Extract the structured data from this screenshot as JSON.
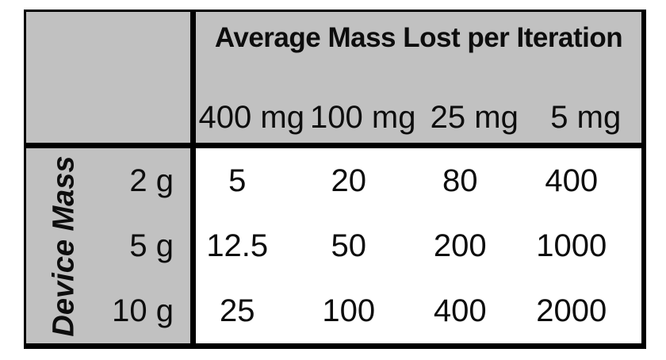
{
  "ui": {
    "title": "Average Mass Lost per Iteration",
    "row_axis": "Device Mass",
    "columns": [
      "400 mg",
      "100 mg",
      "25 mg",
      "5 mg"
    ],
    "rows": [
      {
        "label": "2 g",
        "values": [
          "5",
          "20",
          "80",
          "400"
        ]
      },
      {
        "label": "5 g",
        "values": [
          "12.5",
          "50",
          "200",
          "1000"
        ]
      },
      {
        "label": "10 g",
        "values": [
          "25",
          "100",
          "400",
          "2000"
        ]
      }
    ],
    "colors": {
      "header_bg": "#c1c1c1",
      "body_bg": "#ffffff",
      "border": "#000000",
      "text": "#0d0d0d"
    }
  },
  "chart_data": {
    "type": "table",
    "title": "Average Mass Lost per Iteration",
    "column_axis_label": "Average Mass Lost per Iteration",
    "row_axis_label": "Device Mass",
    "column_headers": [
      "400 mg",
      "100 mg",
      "25 mg",
      "5 mg"
    ],
    "row_headers": [
      "2 g",
      "5 g",
      "10 g"
    ],
    "values": [
      [
        5,
        20,
        80,
        400
      ],
      [
        12.5,
        50,
        200,
        1000
      ],
      [
        25,
        100,
        400,
        2000
      ]
    ]
  }
}
